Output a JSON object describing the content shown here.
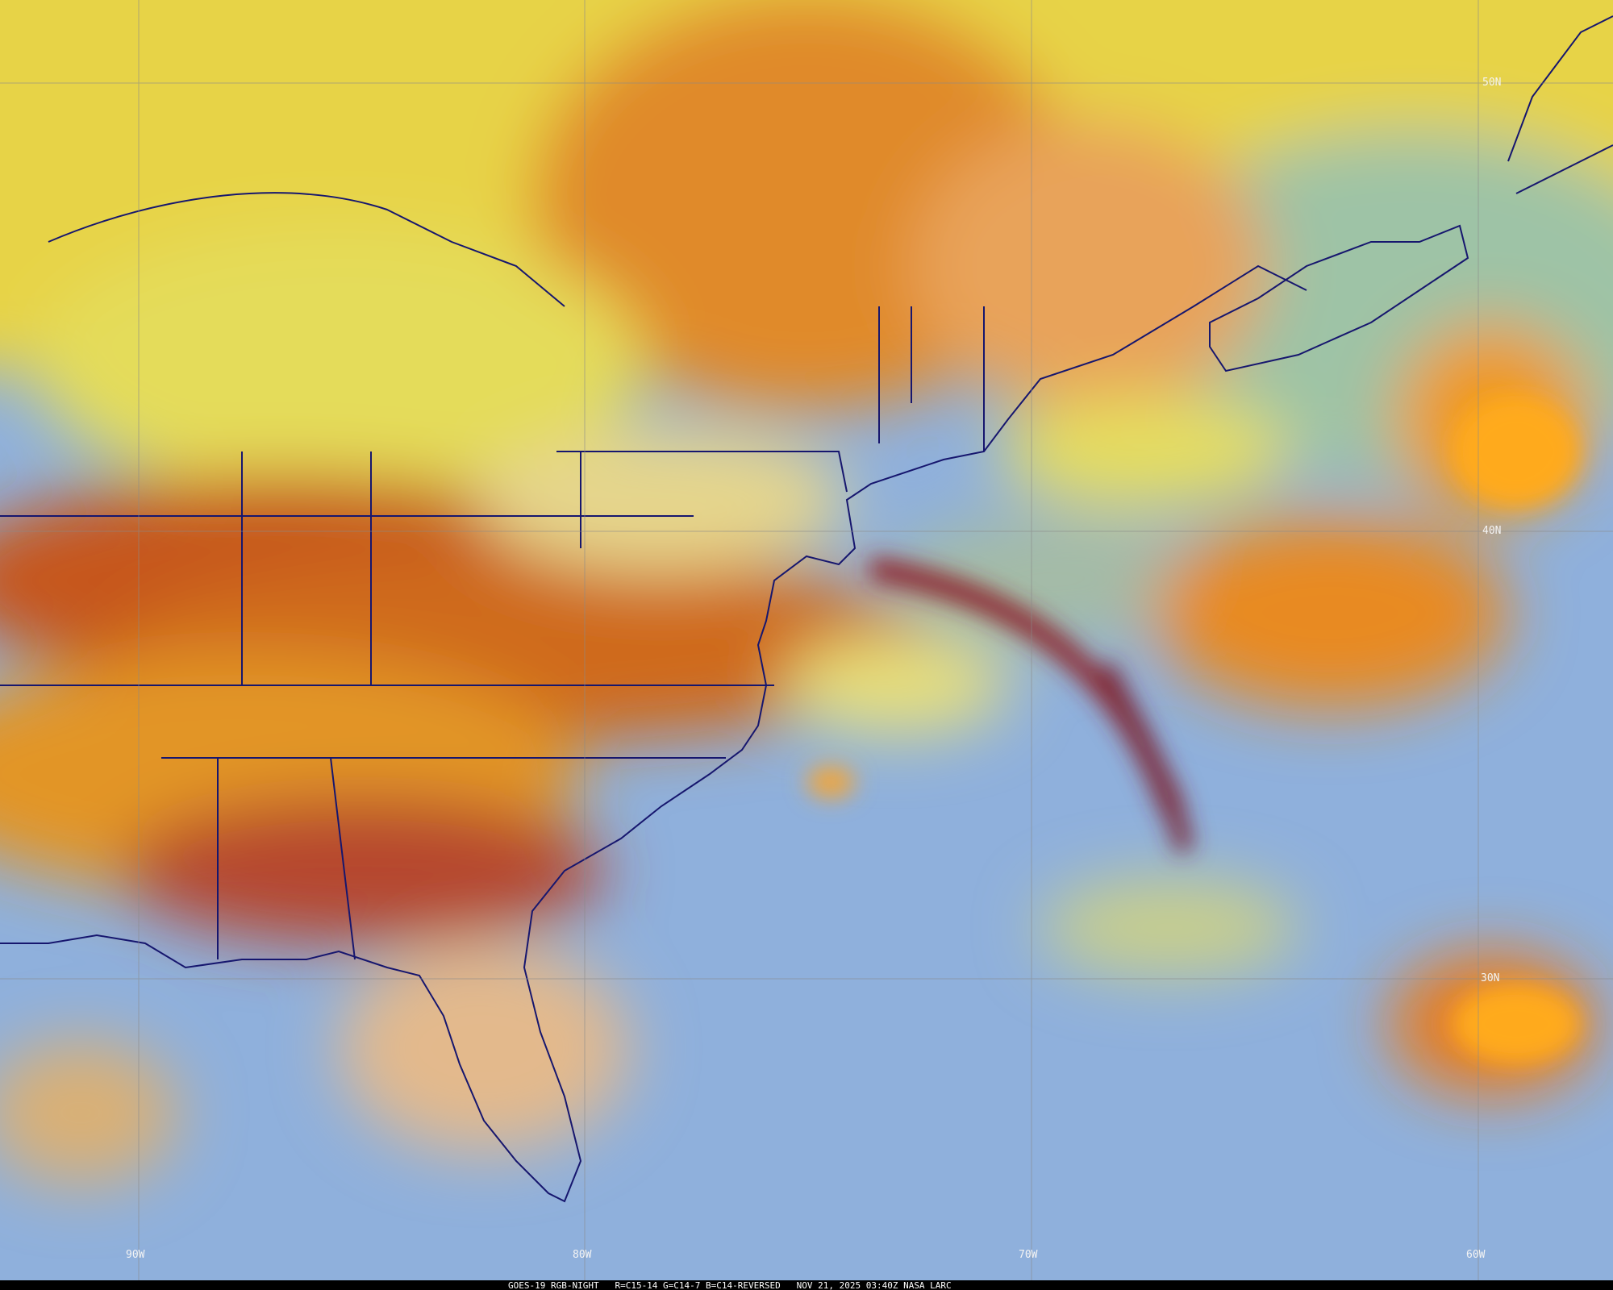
{
  "map": {
    "grid_labels": {
      "latitude": [
        "50N",
        "40N",
        "30N"
      ],
      "longitude": [
        "90W",
        "80W",
        "70W",
        "60W"
      ]
    },
    "footer": "GOES-19 RGB-NIGHT   R=C15-14 G=C14-7 B=C14-REVERSED   NOV 21, 2025 03:40Z NASA LARC"
  }
}
